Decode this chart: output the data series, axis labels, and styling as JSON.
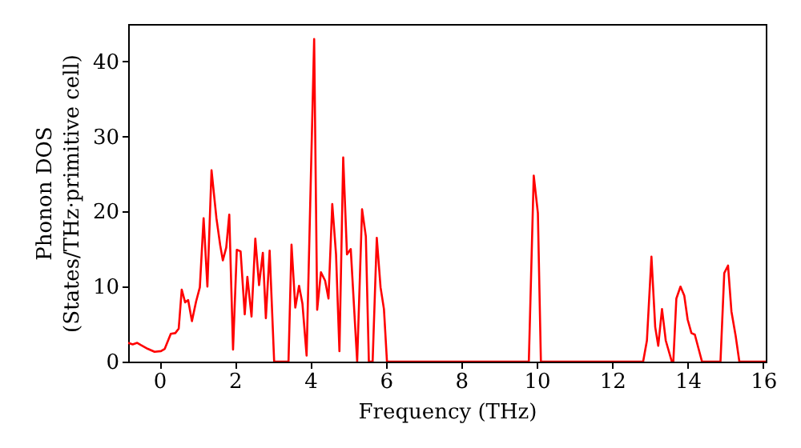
{
  "chart_data": {
    "type": "line",
    "xlabel": "Frequency (THz)",
    "ylabel": "Phonon DOS\n(States/THz·primitive cell)",
    "xlim": [
      -0.83,
      16.07
    ],
    "xticks": [
      0,
      2,
      4,
      6,
      8,
      10,
      12,
      14,
      16
    ],
    "ylim": [
      0,
      45
    ],
    "yticks": [
      0,
      10,
      20,
      30,
      40
    ],
    "grid": false,
    "marker": "none",
    "line_style": "solid",
    "x": [
      -0.83,
      -0.71,
      -0.59,
      -0.49,
      -0.31,
      -0.13,
      0.04,
      0.14,
      0.3,
      0.42,
      0.51,
      0.59,
      0.68,
      0.76,
      0.86,
      0.97,
      1.07,
      1.17,
      1.27,
      1.38,
      1.51,
      1.61,
      1.68,
      1.77,
      1.85,
      1.95,
      2.05,
      2.15,
      2.26,
      2.33,
      2.44,
      2.54,
      2.64,
      2.74,
      2.82,
      2.92,
      3.04,
      3.42,
      3.5,
      3.6,
      3.7,
      3.79,
      3.9,
      4.0,
      4.1,
      4.18,
      4.28,
      4.39,
      4.48,
      4.58,
      4.68,
      4.77,
      4.87,
      4.97,
      5.07,
      5.24,
      5.37,
      5.47,
      5.55,
      5.65,
      5.76,
      5.86,
      5.95,
      6.03,
      9.79,
      9.92,
      10.03,
      10.11,
      12.82,
      12.92,
      13.04,
      13.14,
      13.22,
      13.32,
      13.42,
      13.58,
      13.62,
      13.7,
      13.81,
      13.91,
      14.0,
      14.1,
      14.19,
      14.38,
      14.87,
      14.97,
      15.07,
      15.16,
      15.27,
      15.37,
      16.07
    ],
    "series": [
      {
        "color": "#ff0000",
        "values": [
          2.5,
          2.3,
          2.5,
          2.2,
          1.7,
          1.3,
          1.4,
          1.7,
          3.7,
          3.8,
          4.4,
          9.6,
          7.9,
          8.2,
          5.4,
          8.0,
          9.9,
          19.1,
          10.0,
          25.5,
          19.1,
          15.5,
          13.5,
          15.2,
          19.6,
          1.6,
          14.9,
          14.7,
          6.3,
          11.3,
          6.0,
          16.4,
          10.2,
          14.5,
          5.8,
          14.8,
          0,
          0,
          15.6,
          7.2,
          10.1,
          7.7,
          0.8,
          21.9,
          43.0,
          6.9,
          11.9,
          10.8,
          8.4,
          21.0,
          14.3,
          1.4,
          27.2,
          14.3,
          15.0,
          0,
          20.3,
          16.7,
          0,
          0,
          16.5,
          9.9,
          7.0,
          0,
          0,
          24.8,
          19.8,
          0,
          0,
          2.8,
          14.0,
          4.6,
          2.1,
          7.0,
          2.8,
          0,
          0,
          8.4,
          10.0,
          8.8,
          5.6,
          3.8,
          3.6,
          0,
          0,
          11.8,
          12.8,
          6.7,
          3.5,
          0,
          0
        ]
      }
    ]
  }
}
